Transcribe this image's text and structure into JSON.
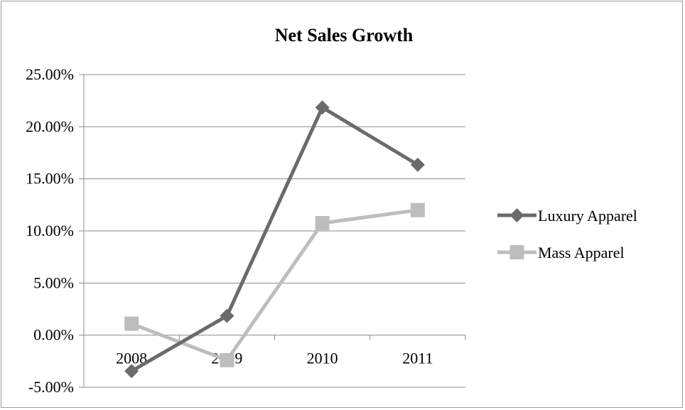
{
  "chart_data": {
    "type": "line",
    "title": "Net Sales Growth",
    "xlabel": "",
    "ylabel": "",
    "categories": [
      "2008",
      "2009",
      "2010",
      "2011"
    ],
    "series": [
      {
        "name": "Luxury Apparel",
        "values": [
          -0.0345,
          0.0185,
          0.2185,
          0.1635
        ],
        "color": "#6b6b6b",
        "marker": "diamond"
      },
      {
        "name": "Mass Apparel",
        "values": [
          0.011,
          -0.024,
          0.1075,
          0.12
        ],
        "color": "#bdbdbd",
        "marker": "square"
      }
    ],
    "ylim": [
      -0.05,
      0.25
    ],
    "yticks": [
      0.25,
      0.2,
      0.15,
      0.1,
      0.05,
      0,
      -0.05
    ],
    "ytick_labels": [
      "25.00%",
      "20.00%",
      "15.00%",
      "10.00%",
      "5.00%",
      "0.00%",
      "-5.00%"
    ],
    "grid": true,
    "legend_position": "right"
  }
}
